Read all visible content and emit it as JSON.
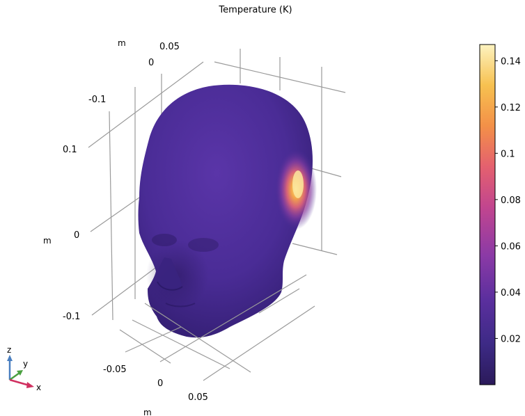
{
  "chart_data": {
    "type": "3d-surface",
    "title": "Temperature (K)",
    "axes": {
      "x": {
        "label": "m",
        "ticks": [
          "-0.05",
          "0",
          "0.05"
        ]
      },
      "y": {
        "label": "m",
        "ticks": [
          "-0.1",
          "0",
          "0.05"
        ]
      },
      "z": {
        "label": "m",
        "ticks": [
          "0.1",
          "0",
          "-0.1"
        ]
      }
    },
    "colorbar": {
      "ticks": [
        "0.14",
        "0.12",
        "0.1",
        "0.08",
        "0.06",
        "0.04",
        "0.02"
      ],
      "tick_values": [
        0.14,
        0.12,
        0.1,
        0.08,
        0.06,
        0.04,
        0.02
      ],
      "range": [
        0.0,
        0.147
      ],
      "colormap": [
        "#2b1a5a",
        "#3d2a86",
        "#5b2f9e",
        "#8b3aa6",
        "#c1458f",
        "#e4606f",
        "#f39048",
        "#f7c150",
        "#fdf3c0"
      ]
    },
    "hotspot": {
      "value": 0.14,
      "location": "right side of head, above ear"
    },
    "base_value": 0.0
  },
  "triad": {
    "z": "z",
    "y": "y",
    "x": "x"
  }
}
